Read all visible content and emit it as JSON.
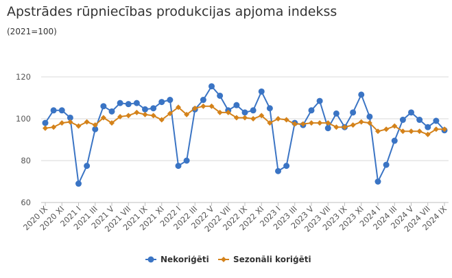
{
  "title": "Apstrādes rūpniecības produkcijas apjoma indekss",
  "subtitle": "(2021=100)",
  "chart_data": {
    "type": "line",
    "title": "Apstrādes rūpniecības produkcijas apjoma indekss",
    "subtitle": "(2021=100)",
    "ylim": [
      60,
      120
    ],
    "yticks": [
      60,
      80,
      100,
      120
    ],
    "grid": true,
    "legend": "bottom",
    "xtick_labels": [
      "2020 IX",
      "2020 XI",
      "2021 I",
      "2021 III",
      "2021 V",
      "2021 VII",
      "2021 IX",
      "2021 XI",
      "2022 I",
      "2022 III",
      "2022 V",
      "2022 VII",
      "2022 IX",
      "2022 XI",
      "2023 I",
      "2023 III",
      "2023 V",
      "2023 VII",
      "2023 IX",
      "2023 XI",
      "2024 I",
      "2024 III",
      "2024 V",
      "2024 VII",
      "2024 IX"
    ],
    "x": [
      "2020 IX",
      "2020 X",
      "2020 XI",
      "2020 XII",
      "2021 I",
      "2021 II",
      "2021 III",
      "2021 IV",
      "2021 V",
      "2021 VI",
      "2021 VII",
      "2021 VIII",
      "2021 IX",
      "2021 X",
      "2021 XI",
      "2021 XII",
      "2022 I",
      "2022 II",
      "2022 III",
      "2022 IV",
      "2022 V",
      "2022 VI",
      "2022 VII",
      "2022 VIII",
      "2022 IX",
      "2022 X",
      "2022 XI",
      "2022 XII",
      "2023 I",
      "2023 II",
      "2023 III",
      "2023 IV",
      "2023 V",
      "2023 VI",
      "2023 VII",
      "2023 VIII",
      "2023 IX",
      "2023 X",
      "2023 XI",
      "2023 XII",
      "2024 I",
      "2024 II",
      "2024 III",
      "2024 IV",
      "2024 V",
      "2024 VI",
      "2024 VII",
      "2024 VIII",
      "2024 IX"
    ],
    "series": [
      {
        "name": "Nekoriģēti",
        "color": "#3a74c4",
        "marker": "circle",
        "values": [
          98,
          104,
          104,
          100.5,
          69,
          77.5,
          95,
          106,
          103.5,
          107.5,
          107,
          107.5,
          104.5,
          105,
          108,
          109,
          77.5,
          80,
          104.5,
          109,
          115.5,
          111,
          104,
          106.5,
          103,
          104,
          113,
          105,
          75,
          77.5,
          98,
          97,
          104,
          108.5,
          95.5,
          102.5,
          96,
          103,
          111.5,
          101,
          70,
          78,
          89.5,
          99.5,
          103,
          99.5,
          96,
          99,
          94.5
        ]
      },
      {
        "name": "Sezonāli koriģēti",
        "color": "#d4821a",
        "marker": "diamond",
        "values": [
          95.5,
          96,
          98,
          98.5,
          96.5,
          98.5,
          97,
          100.5,
          98,
          101,
          101.5,
          103,
          102,
          101.5,
          99.5,
          102.5,
          105.5,
          102,
          105,
          106,
          106,
          103,
          103,
          100.5,
          100.5,
          100,
          101.5,
          98,
          100,
          99.5,
          97.5,
          97.5,
          98,
          98,
          98,
          96,
          96,
          97,
          98.5,
          98,
          94,
          95,
          96.5,
          94,
          94,
          94,
          92.5,
          95,
          95
        ]
      }
    ]
  }
}
